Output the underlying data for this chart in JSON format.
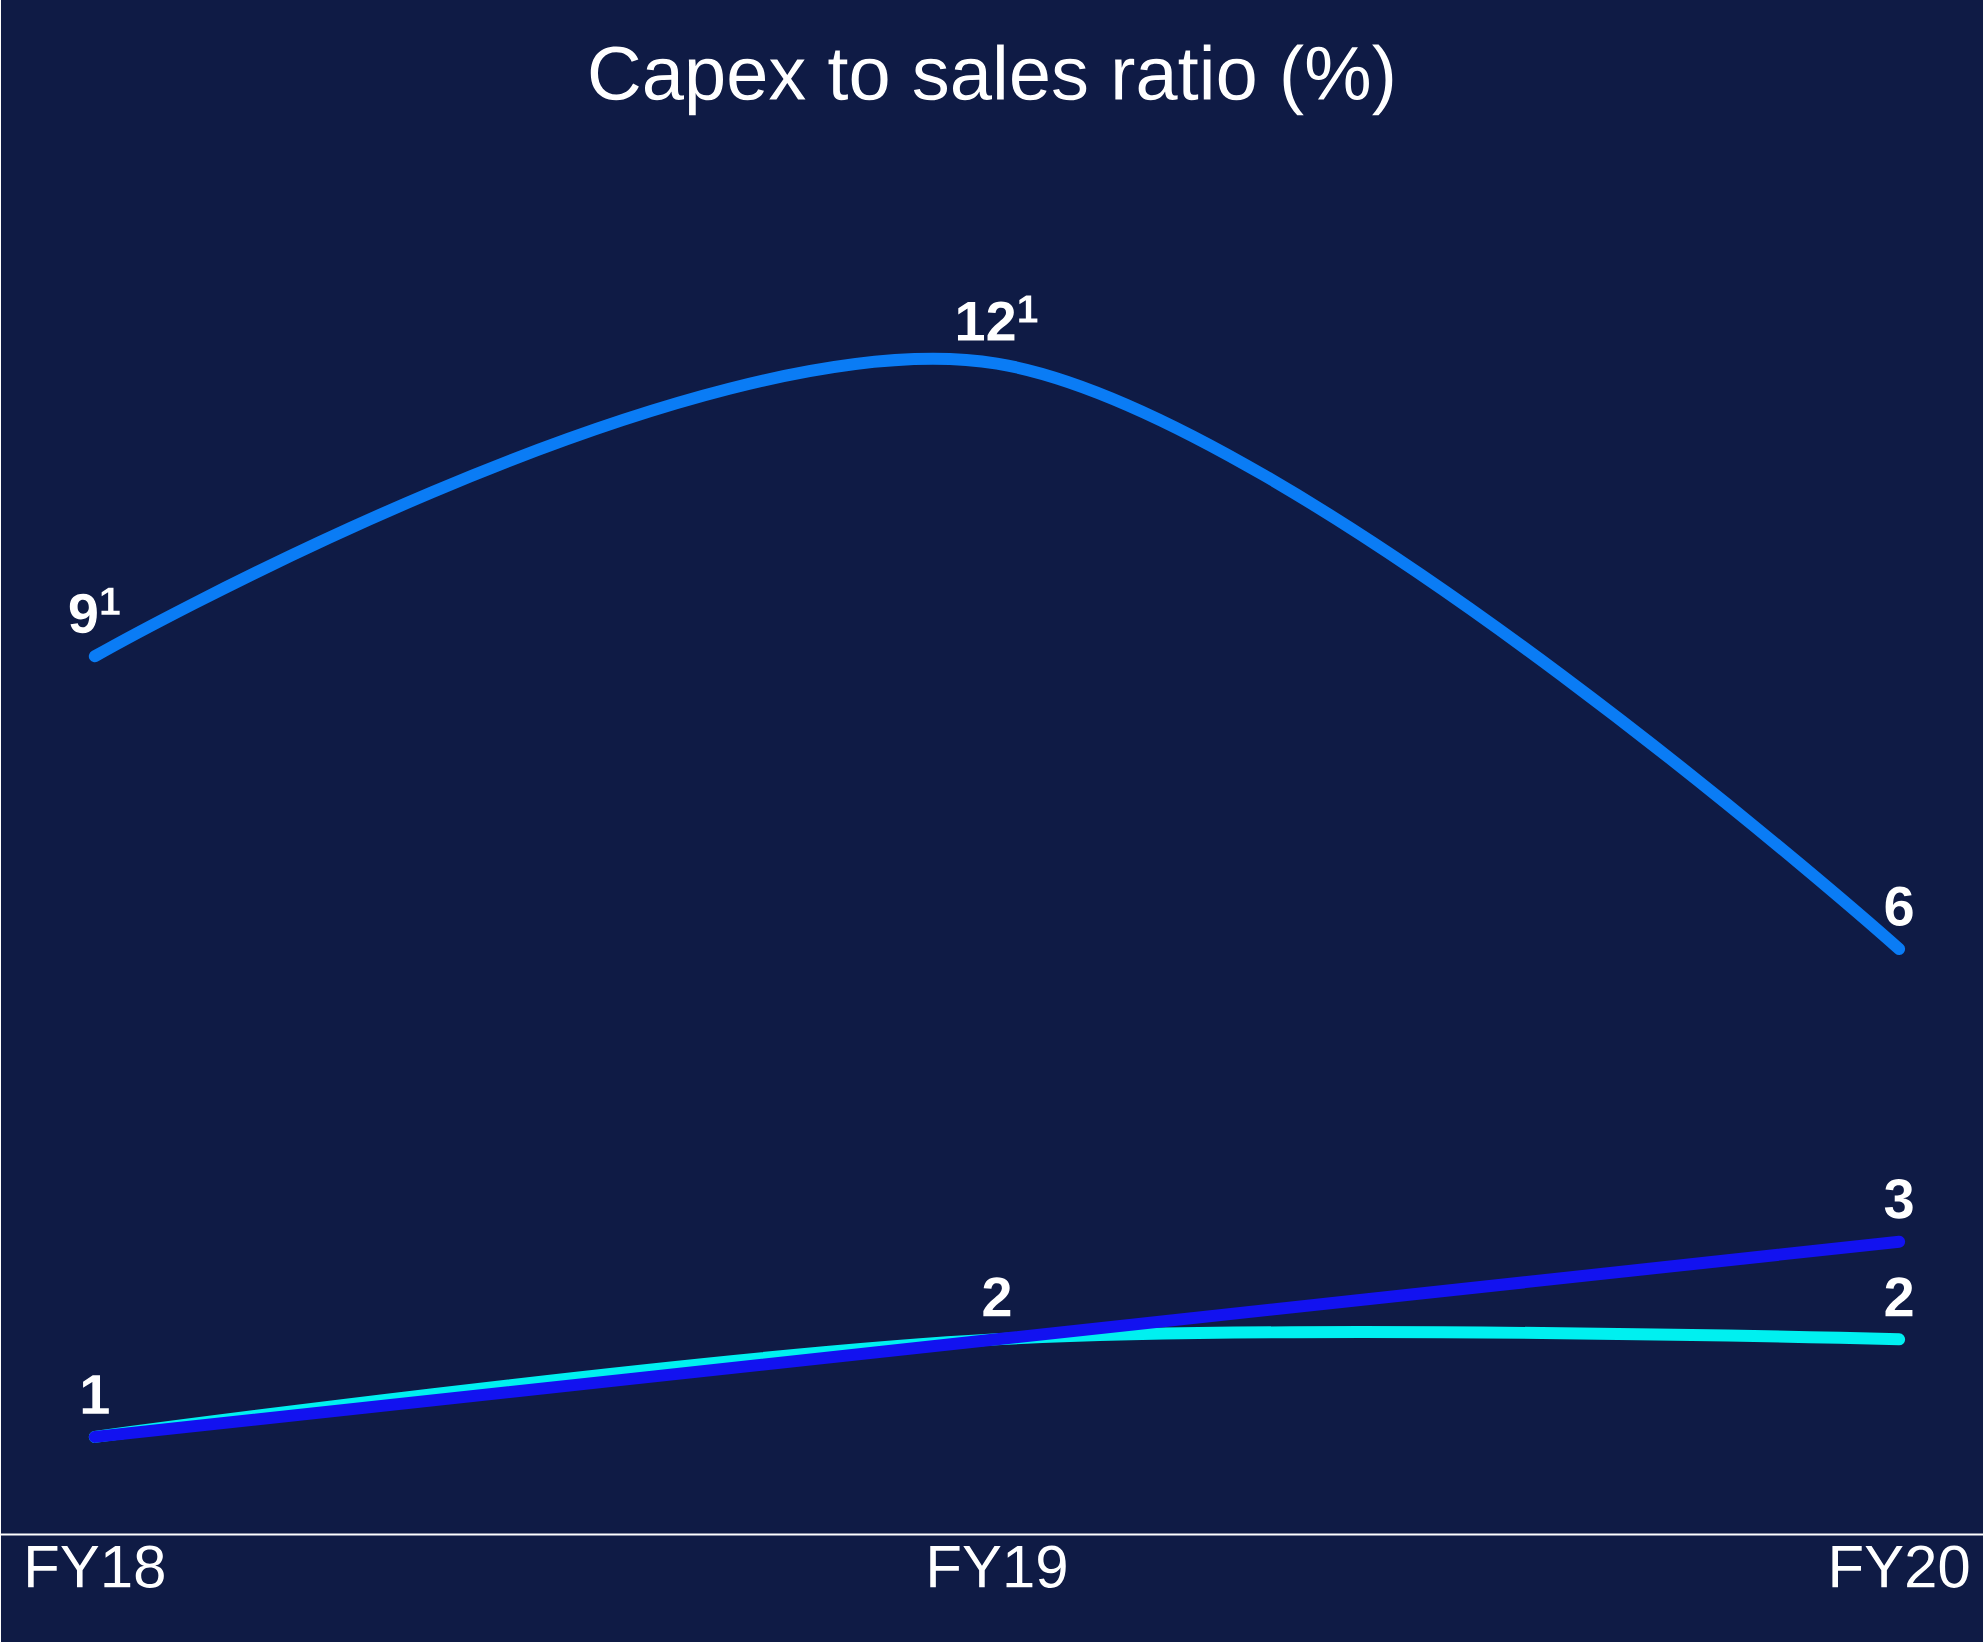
{
  "chart_data": {
    "type": "line",
    "title": "Capex to sales ratio (%)",
    "categories": [
      "FY18",
      "FY19",
      "FY20"
    ],
    "series": [
      {
        "color": "#0a7cf5",
        "values": [
          9,
          12,
          6
        ],
        "value_labels": [
          "9$^{1}$",
          "12$^{1}$",
          "6"
        ]
      },
      {
        "color": "#00f0f0",
        "values": [
          1,
          2,
          2
        ],
        "value_labels": [
          null,
          null,
          "2"
        ]
      },
      {
        "color": "#1212f0",
        "values": [
          1,
          2,
          3
        ],
        "value_labels": [
          "1",
          "2",
          "3"
        ]
      }
    ],
    "marker": "none",
    "line_style": "solid"
  }
}
